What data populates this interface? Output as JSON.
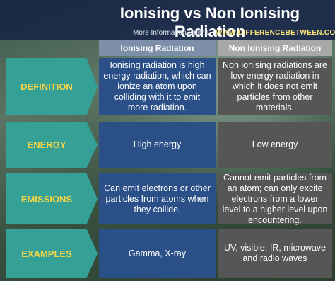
{
  "header": {
    "title": "Ionising vs Non Ionising Radiation",
    "subtitle": "More Information  Online",
    "url": "WWW.DIFFERENCEBETWEEN.COM"
  },
  "table": {
    "columns": [
      "Ionising Radiation",
      "Non Ionising Radiation"
    ],
    "rows": [
      {
        "label": "DEFINITION",
        "cells": [
          "Ionising radiation is high energy radiation, which can ionize an atom upon colliding with it to emit more radiation.",
          "Non ionising radiations are low energy radiation in which it does not emit particles from other materials."
        ]
      },
      {
        "label": "ENERGY",
        "cells": [
          "High energy",
          "Low energy"
        ]
      },
      {
        "label": "EMISSIONS",
        "cells": [
          "Can emit electrons or other particles from atoms when they collide.",
          "Cannot emit particles from an atom; can only excite electrons from a lower level to a higher level upon encountering."
        ]
      },
      {
        "label": "EXAMPLES",
        "cells": [
          "Gamma, X-ray",
          "UV, visible, IR, microwave and radio waves"
        ]
      }
    ]
  }
}
